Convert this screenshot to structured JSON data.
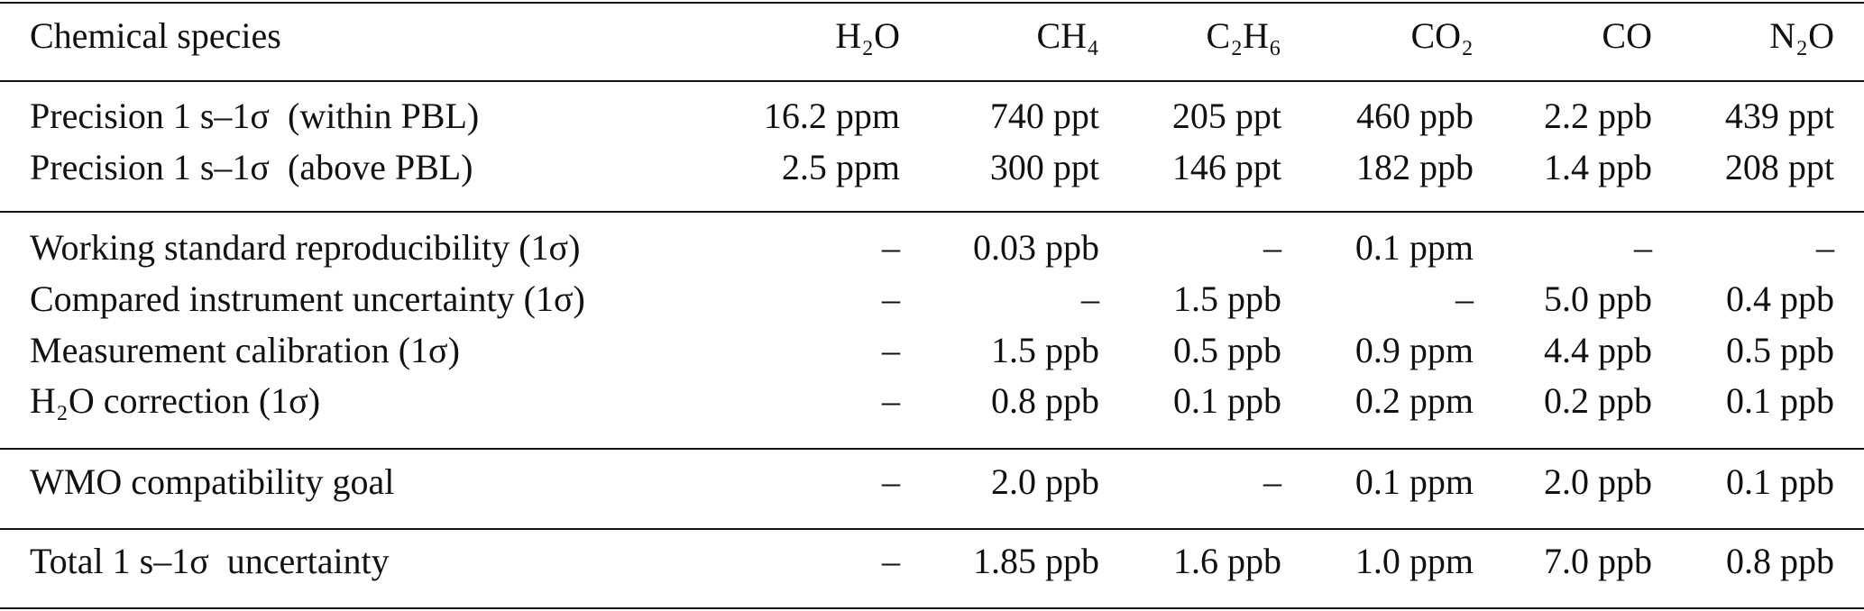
{
  "table": {
    "header": [
      "Chemical species",
      "H₂O",
      "CH₄",
      "C₂H₆",
      "CO₂",
      "CO",
      "N₂O"
    ],
    "groups": [
      [
        [
          "Precision 1 s–1σ  (within PBL)",
          "16.2 ppm",
          "740 ppt",
          "205 ppt",
          "460 ppb",
          "2.2 ppb",
          "439 ppt"
        ],
        [
          "Precision 1 s–1σ  (above PBL)",
          "2.5 ppm",
          "300 ppt",
          "146 ppt",
          "182 ppb",
          "1.4 ppb",
          "208 ppt"
        ]
      ],
      [
        [
          "Working standard reproducibility (1σ)",
          "–",
          "0.03 ppb",
          "–",
          "0.1 ppm",
          "–",
          "–"
        ],
        [
          "Compared instrument uncertainty (1σ)",
          "–",
          "–",
          "1.5 ppb",
          "–",
          "5.0 ppb",
          "0.4 ppb"
        ],
        [
          "Measurement calibration (1σ)",
          "–",
          "1.5 ppb",
          "0.5 ppb",
          "0.9 ppm",
          "4.4 ppb",
          "0.5 ppb"
        ],
        [
          "H₂O correction (1σ)",
          "–",
          "0.8 ppb",
          "0.1 ppb",
          "0.2 ppm",
          "0.2 ppb",
          "0.1 ppb"
        ]
      ],
      [
        [
          "WMO compatibility goal",
          "–",
          "2.0 ppb",
          "–",
          "0.1 ppm",
          "2.0 ppb",
          "0.1 ppb"
        ]
      ],
      [
        [
          "Total 1 s–1σ  uncertainty",
          "–",
          "1.85 ppb",
          "1.6 ppb",
          "1.0 ppm",
          "7.0 ppb",
          "0.8 ppb"
        ]
      ]
    ]
  }
}
